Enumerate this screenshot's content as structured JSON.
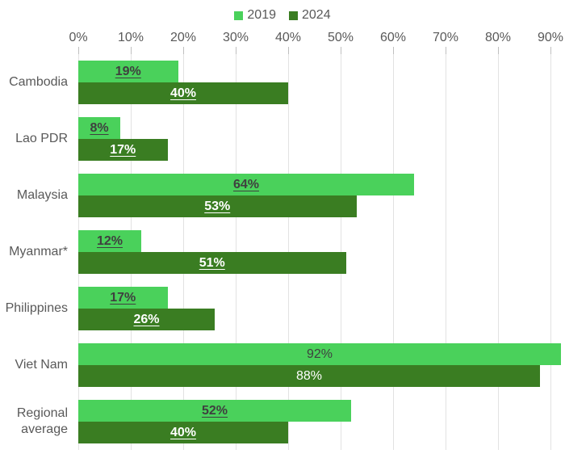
{
  "legend": [
    {
      "label": "2019",
      "color": "#4ad15b"
    },
    {
      "label": "2024",
      "color": "#3a7d22"
    }
  ],
  "colors": {
    "series_2019": "#4ad15b",
    "series_2024": "#3a7d22",
    "axis_text": "#595959",
    "gridline": "#e2e2e2",
    "label_on_light": "#3f3f3f",
    "label_on_dark": "#ffffff"
  },
  "chart_data": {
    "type": "bar",
    "orientation": "horizontal",
    "title": "",
    "xlabel": "",
    "ylabel": "",
    "xlim": [
      0,
      90
    ],
    "grid": true,
    "legend_position": "top-center",
    "axis_tick_labels": [
      "0%",
      "10%",
      "20%",
      "30%",
      "40%",
      "50%",
      "60%",
      "70%",
      "80%",
      "90%"
    ],
    "categories": [
      "Cambodia",
      "Lao PDR",
      "Malaysia",
      "Myanmar*",
      "Philippines",
      "Viet Nam",
      "Regional average"
    ],
    "series": [
      {
        "name": "2019",
        "values": [
          19,
          8,
          64,
          12,
          17,
          92,
          52
        ]
      },
      {
        "name": "2024",
        "values": [
          40,
          17,
          53,
          51,
          26,
          88,
          40
        ]
      }
    ],
    "data_labels": {
      "format": "value_percent",
      "underlined_per_row": [
        true,
        true,
        true,
        true,
        true,
        false,
        true
      ],
      "bold_per_row": [
        true,
        true,
        true,
        true,
        true,
        false,
        true
      ]
    }
  }
}
